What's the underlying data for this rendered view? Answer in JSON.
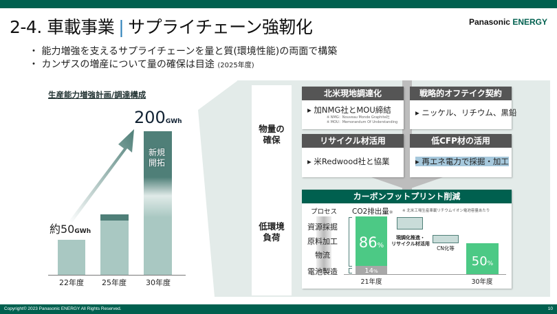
{
  "header": {
    "section": "2-4. 車載事業",
    "separator": "|",
    "title": "サプライチェーン強靭化",
    "logo_brand": "Panasonic",
    "logo_sub": "ENERGY"
  },
  "bullets": [
    {
      "text": "能力増強を支えるサプライチェーンを量と質(環境性能)の両面で構築",
      "note": ""
    },
    {
      "text": "カンザスの増産について量の確保は目途",
      "note": "(2025年度)"
    }
  ],
  "capacity_chart": {
    "title": "生産能力増強計画/調達構成",
    "categories": [
      "22年度",
      "25年度",
      "30年度"
    ],
    "values_gwh": [
      50,
      null,
      200
    ],
    "label_start": "約50",
    "label_end": "200",
    "unit": "GWh",
    "new_label_1": "新規",
    "new_label_2": "開拓"
  },
  "volume": {
    "label_1": "物量の",
    "label_2": "確保",
    "boxes": [
      {
        "title": "北米現地調達化",
        "body": "▸ 加NMG社とMOU締結",
        "notes": [
          "※ NMG：Nouveau Monde Graphite社",
          "※ MOU：Memorandum Of Understanding"
        ]
      },
      {
        "title": "戦略的オフテイク契約",
        "body": "▸ ニッケル、リチウム、黒鉛"
      },
      {
        "title": "リサイクル材活用",
        "body": "▸ 米Redwood社と協業"
      },
      {
        "title": "低CFP材の活用",
        "body": "▸ 再エネ電力で採掘・加工"
      }
    ]
  },
  "environment": {
    "label_1": "低環境",
    "label_2": "負荷",
    "title": "カーボンフットプリント削減",
    "process_header": "プロセス",
    "co2_header": "CO2排出量",
    "co2_mark": "※",
    "footnote": "※ 北米工場生産車載リチウムイオン電池容量あたり",
    "processes": [
      "資源採掘",
      "原料加工",
      "物流",
      "電池製造"
    ],
    "bar21_upper": "86",
    "bar21_lower": "14",
    "bar30": "50",
    "pct": "%",
    "step1_label_1": "現調化推進・",
    "step1_label_2": "リサイクル材活用",
    "step2_label": "CN化等",
    "x_labels": [
      "21年度",
      "30年度"
    ]
  },
  "footer": {
    "copyright": "Copyright© 2023 Panasonic ENERGY All Rights Reserved.",
    "page": "10"
  },
  "colors": {
    "brand_green": "#00604f",
    "bar_light": "#a9c8c2",
    "bar_dark": "#4f7f78",
    "co2_green": "#4cc985",
    "box_header": "#555555",
    "panel_bg": "#e3ebe9"
  }
}
